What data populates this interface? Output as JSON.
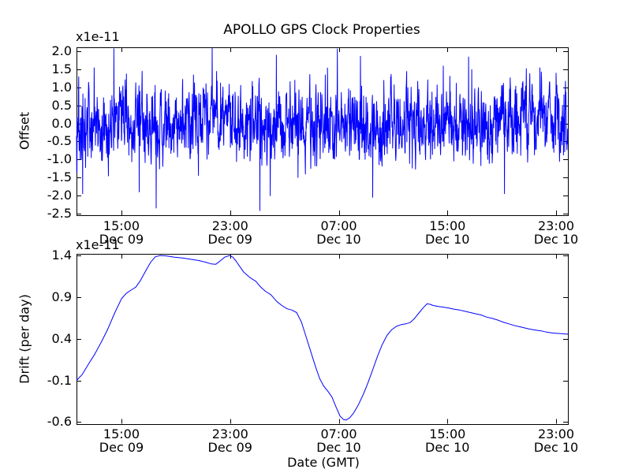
{
  "figure": {
    "background": "#ffffff",
    "frame_color": "#000000",
    "line_color": "#0000ff"
  },
  "chart_data": [
    {
      "type": "line",
      "id": "offset-plot",
      "title": "APOLLO GPS Clock Properties",
      "ylabel": "Offset",
      "y_offset_text": "x1e-11",
      "ylim": [
        -2.55,
        2.12
      ],
      "yticks": [
        "2.0",
        "1.5",
        "1.0",
        "0.5",
        "0.0",
        "-0.5",
        "-1.0",
        "-1.5",
        "-2.0",
        "-2.5"
      ],
      "grid": false,
      "xlim_hours": [
        11.69,
        47.87
      ],
      "xticks": [
        {
          "hour": 15,
          "time": "15:00",
          "date": "Dec 09"
        },
        {
          "hour": 23,
          "time": "23:00",
          "date": "Dec 09"
        },
        {
          "hour": 31,
          "time": "07:00",
          "date": "Dec 10"
        },
        {
          "hour": 39,
          "time": "15:00",
          "date": "Dec 10"
        },
        {
          "hour": 47,
          "time": "23:00",
          "date": "Dec 10"
        }
      ],
      "series": [
        {
          "name": "gps-clock-offset",
          "style": "noisy",
          "n_points": 2000,
          "mean": 0.0,
          "std": 0.5,
          "ar_coeff": 0.45,
          "seed": 77041969,
          "spike_probability": 0.012,
          "clip": [
            -2.45,
            2.1
          ],
          "notable_spikes": [
            [
              11.85,
              1.3
            ],
            [
              12.15,
              -1.95
            ],
            [
              13.0,
              1.55
            ],
            [
              14.45,
              2.08
            ],
            [
              16.3,
              -1.9
            ],
            [
              17.55,
              -2.35
            ],
            [
              20.3,
              1.35
            ],
            [
              22.0,
              1.45
            ],
            [
              25.2,
              -2.42
            ],
            [
              26.4,
              1.9
            ],
            [
              28.0,
              -1.5
            ],
            [
              30.0,
              1.35
            ],
            [
              32.6,
              1.87
            ],
            [
              33.5,
              -2.05
            ],
            [
              36.0,
              1.45
            ],
            [
              38.7,
              1.6
            ],
            [
              40.8,
              1.5
            ],
            [
              43.2,
              -1.95
            ],
            [
              45.8,
              1.55
            ],
            [
              47.0,
              1.4
            ]
          ]
        }
      ]
    },
    {
      "type": "line",
      "id": "drift-plot",
      "xlabel": "Date (GMT)",
      "ylabel": "Drift (per day)",
      "y_offset_text": "x1e-11",
      "ylim": [
        -0.62,
        1.42
      ],
      "yticks": [
        "1.4",
        "0.9",
        "0.4",
        "-0.1",
        "-0.6"
      ],
      "grid": false,
      "xlim_hours": [
        11.69,
        47.87
      ],
      "xticks": [
        {
          "hour": 15,
          "time": "15:00",
          "date": "Dec 09"
        },
        {
          "hour": 23,
          "time": "23:00",
          "date": "Dec 09"
        },
        {
          "hour": 31,
          "time": "07:00",
          "date": "Dec 10"
        },
        {
          "hour": 39,
          "time": "15:00",
          "date": "Dec 10"
        },
        {
          "hour": 47,
          "time": "23:00",
          "date": "Dec 10"
        }
      ],
      "series": [
        {
          "name": "gps-clock-drift",
          "style": "smooth",
          "points": [
            [
              11.69,
              -0.1
            ],
            [
              12.1,
              -0.03
            ],
            [
              12.55,
              0.09
            ],
            [
              13.05,
              0.22
            ],
            [
              13.55,
              0.37
            ],
            [
              14.0,
              0.52
            ],
            [
              14.5,
              0.71
            ],
            [
              15.0,
              0.88
            ],
            [
              15.35,
              0.945
            ],
            [
              15.7,
              0.985
            ],
            [
              16.05,
              1.02
            ],
            [
              16.4,
              1.1
            ],
            [
              16.8,
              1.22
            ],
            [
              17.15,
              1.32
            ],
            [
              17.5,
              1.385
            ],
            [
              17.85,
              1.4
            ],
            [
              18.3,
              1.395
            ],
            [
              18.9,
              1.38
            ],
            [
              19.5,
              1.37
            ],
            [
              20.1,
              1.355
            ],
            [
              20.7,
              1.34
            ],
            [
              21.2,
              1.32
            ],
            [
              21.6,
              1.3
            ],
            [
              21.95,
              1.295
            ],
            [
              22.3,
              1.34
            ],
            [
              22.6,
              1.38
            ],
            [
              22.95,
              1.4
            ],
            [
              23.2,
              1.38
            ],
            [
              23.45,
              1.33
            ],
            [
              23.7,
              1.27
            ],
            [
              24.0,
              1.2
            ],
            [
              24.5,
              1.13
            ],
            [
              24.9,
              1.09
            ],
            [
              25.2,
              1.03
            ],
            [
              25.6,
              0.97
            ],
            [
              26.0,
              0.93
            ],
            [
              26.45,
              0.845
            ],
            [
              26.85,
              0.795
            ],
            [
              27.2,
              0.76
            ],
            [
              27.55,
              0.745
            ],
            [
              27.9,
              0.715
            ],
            [
              28.25,
              0.6
            ],
            [
              28.6,
              0.42
            ],
            [
              28.95,
              0.24
            ],
            [
              29.3,
              0.06
            ],
            [
              29.6,
              -0.08
            ],
            [
              29.9,
              -0.17
            ],
            [
              30.2,
              -0.23
            ],
            [
              30.5,
              -0.3
            ],
            [
              30.8,
              -0.42
            ],
            [
              31.1,
              -0.53
            ],
            [
              31.35,
              -0.57
            ],
            [
              31.55,
              -0.575
            ],
            [
              31.8,
              -0.55
            ],
            [
              32.1,
              -0.49
            ],
            [
              32.45,
              -0.39
            ],
            [
              32.8,
              -0.27
            ],
            [
              33.15,
              -0.13
            ],
            [
              33.5,
              0.03
            ],
            [
              33.85,
              0.19
            ],
            [
              34.2,
              0.33
            ],
            [
              34.55,
              0.44
            ],
            [
              34.9,
              0.51
            ],
            [
              35.25,
              0.55
            ],
            [
              35.6,
              0.57
            ],
            [
              35.95,
              0.58
            ],
            [
              36.25,
              0.595
            ],
            [
              36.55,
              0.64
            ],
            [
              36.9,
              0.71
            ],
            [
              37.2,
              0.77
            ],
            [
              37.5,
              0.82
            ],
            [
              37.7,
              0.815
            ],
            [
              37.95,
              0.8
            ],
            [
              38.3,
              0.79
            ],
            [
              38.7,
              0.78
            ],
            [
              39.1,
              0.77
            ],
            [
              39.5,
              0.755
            ],
            [
              39.9,
              0.745
            ],
            [
              40.3,
              0.73
            ],
            [
              40.7,
              0.715
            ],
            [
              41.1,
              0.7
            ],
            [
              41.5,
              0.685
            ],
            [
              41.9,
              0.66
            ],
            [
              42.3,
              0.645
            ],
            [
              42.7,
              0.625
            ],
            [
              43.1,
              0.6
            ],
            [
              43.5,
              0.58
            ],
            [
              43.9,
              0.56
            ],
            [
              44.3,
              0.545
            ],
            [
              44.7,
              0.53
            ],
            [
              45.1,
              0.515
            ],
            [
              45.5,
              0.505
            ],
            [
              45.9,
              0.495
            ],
            [
              46.3,
              0.48
            ],
            [
              46.7,
              0.47
            ],
            [
              47.1,
              0.465
            ],
            [
              47.5,
              0.46
            ],
            [
              47.87,
              0.455
            ]
          ]
        }
      ]
    }
  ]
}
